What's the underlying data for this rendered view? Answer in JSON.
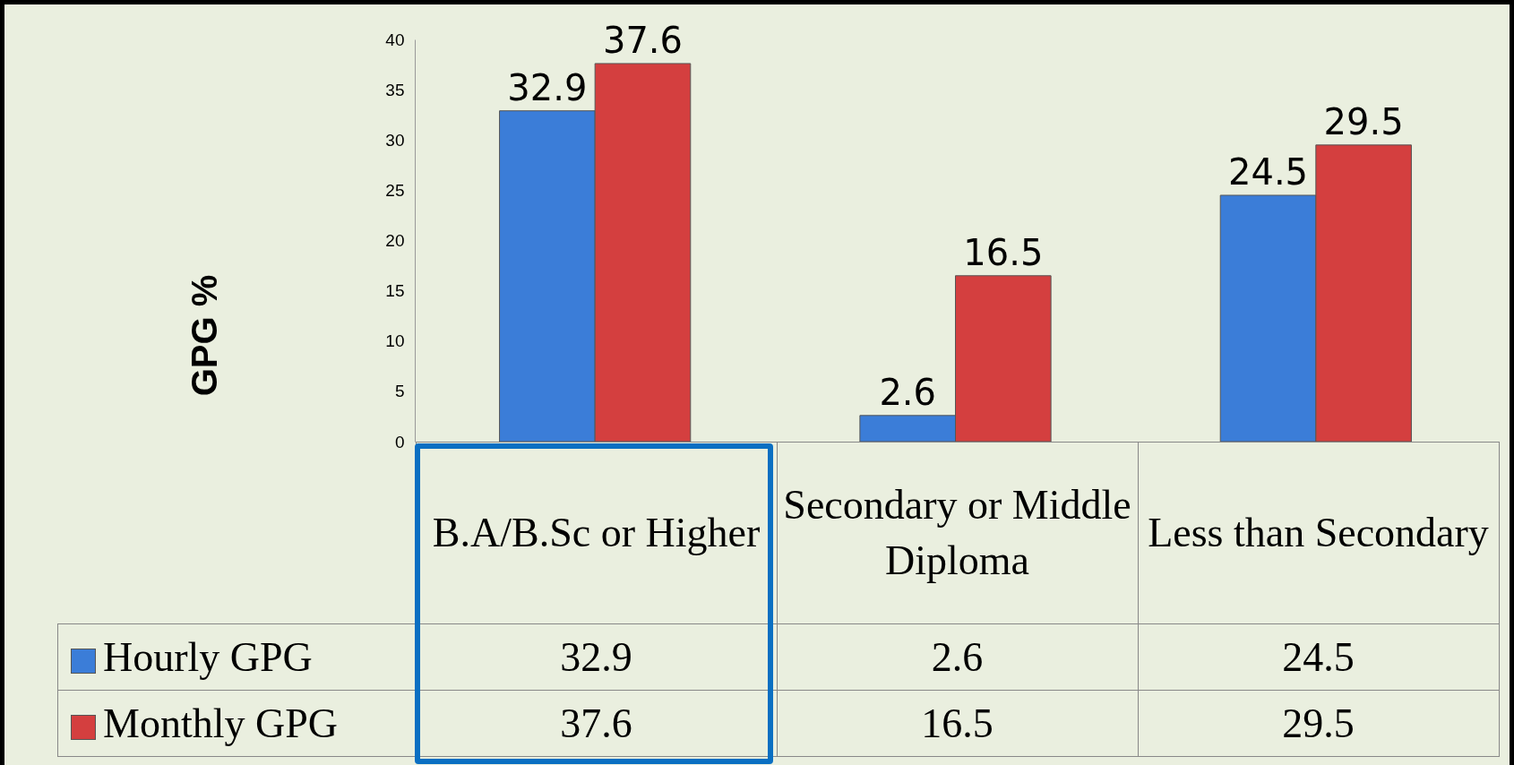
{
  "chart_data": {
    "type": "bar",
    "ylabel": "GPG %",
    "categories": [
      "B.A/B.Sc or Higher",
      "Secondary or Middle Diploma",
      "Less than Secondary"
    ],
    "series": [
      {
        "name": "Hourly GPG",
        "color": "#3b7dd8",
        "values": [
          32.9,
          2.6,
          24.5
        ],
        "value_labels": [
          "32.9",
          "2.6",
          "24.5"
        ]
      },
      {
        "name": "Monthly GPG",
        "color": "#d43f3f",
        "values": [
          37.6,
          16.5,
          29.5
        ],
        "value_labels": [
          "37.6",
          "16.5",
          "29.5"
        ]
      }
    ],
    "ylim": [
      0,
      40
    ],
    "yticks": [
      0,
      5,
      10,
      15,
      20,
      25,
      30,
      35,
      40
    ],
    "grid": false,
    "annotations": [
      "32.9",
      "2.6",
      "24.5",
      "37.6",
      "16.5",
      "29.5"
    ],
    "legend": "bottom left"
  }
}
